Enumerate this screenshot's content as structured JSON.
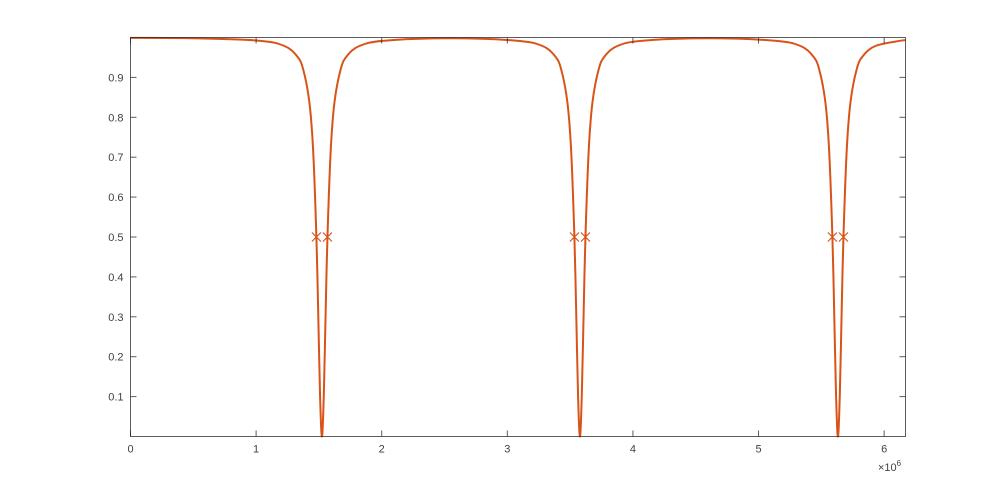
{
  "chart_data": {
    "type": "line",
    "title": "",
    "xlabel": "",
    "ylabel": "",
    "x_exponent_label": "×10",
    "x_exponent": "6",
    "xlim": [
      0,
      6.17
    ],
    "ylim": [
      0,
      1
    ],
    "grid": false,
    "x_ticks": [
      0,
      1,
      2,
      3,
      4,
      5,
      6
    ],
    "x_tick_labels": [
      "0",
      "1",
      "2",
      "3",
      "4",
      "5",
      "6"
    ],
    "y_ticks": [
      0.1,
      0.2,
      0.3,
      0.4,
      0.5,
      0.6,
      0.7,
      0.8,
      0.9
    ],
    "y_tick_labels": [
      "0.1",
      "0.2",
      "0.3",
      "0.4",
      "0.5",
      "0.6",
      "0.7",
      "0.8",
      "0.9"
    ],
    "colors": {
      "line": "#D95319",
      "axes": "#262626",
      "tick_text": "#404040"
    },
    "series": [
      {
        "x": [
          0,
          0.5,
          1.024,
          1.224,
          1.324,
          1.374,
          1.424,
          1.454,
          1.48,
          1.494,
          1.509,
          1.524,
          1.539,
          1.554,
          1.568,
          1.594,
          1.624,
          1.674,
          1.724,
          1.824,
          2.024,
          2.551,
          3.078,
          3.278,
          3.378,
          3.428,
          3.478,
          3.508,
          3.534,
          3.548,
          3.563,
          3.578,
          3.593,
          3.608,
          3.622,
          3.648,
          3.678,
          3.728,
          3.778,
          3.878,
          4.078,
          4.605,
          5.132,
          5.332,
          5.432,
          5.482,
          5.532,
          5.562,
          5.588,
          5.602,
          5.617,
          5.632,
          5.647,
          5.662,
          5.676,
          5.702,
          5.732,
          5.782,
          5.832,
          5.932,
          6.132,
          6.17
        ],
        "y": [
          0.999,
          0.998,
          0.992,
          0.979,
          0.954,
          0.921,
          0.838,
          0.717,
          0.5,
          0.317,
          0.104,
          0,
          0.104,
          0.317,
          0.5,
          0.717,
          0.838,
          0.921,
          0.954,
          0.979,
          0.992,
          0.998,
          0.992,
          0.979,
          0.954,
          0.921,
          0.838,
          0.717,
          0.5,
          0.317,
          0.104,
          0,
          0.104,
          0.317,
          0.5,
          0.717,
          0.838,
          0.921,
          0.954,
          0.979,
          0.992,
          0.998,
          0.992,
          0.979,
          0.954,
          0.921,
          0.838,
          0.717,
          0.5,
          0.317,
          0.104,
          0,
          0.104,
          0.317,
          0.5,
          0.717,
          0.838,
          0.921,
          0.954,
          0.979,
          0.992,
          0.993
        ]
      }
    ],
    "markers": {
      "symbol": "x",
      "x": [
        1.48,
        1.568,
        3.534,
        3.622,
        5.588,
        5.676
      ],
      "y": [
        0.5,
        0.5,
        0.5,
        0.5,
        0.5,
        0.5
      ]
    }
  }
}
